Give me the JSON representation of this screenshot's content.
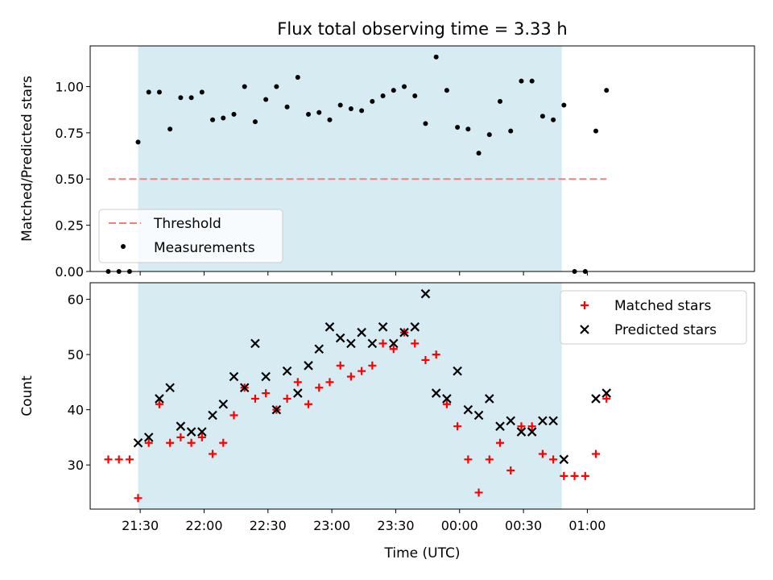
{
  "chart_data": [
    {
      "type": "scatter",
      "title": "Flux total observing time = 3.33 h",
      "xlabel": "",
      "ylabel": "Matched/Predicted stars",
      "ylim": [
        0,
        1.22
      ],
      "yticks": [
        "0.00",
        "0.25",
        "0.50",
        "0.75",
        "1.00"
      ],
      "legend_position": "lower-left",
      "shaded_span": [
        "21:29",
        "00:48"
      ],
      "threshold": {
        "name": "Threshold",
        "value": 0.5,
        "x_range": [
          "21:15",
          "01:09"
        ],
        "color": "#f08080"
      },
      "series": [
        {
          "name": "Measurements",
          "color": "#000000",
          "points": [
            [
              "21:15",
              0.0
            ],
            [
              "21:20",
              0.0
            ],
            [
              "21:25",
              0.0
            ],
            [
              "21:29",
              0.7
            ],
            [
              "21:34",
              0.97
            ],
            [
              "21:39",
              0.97
            ],
            [
              "21:44",
              0.77
            ],
            [
              "21:49",
              0.94
            ],
            [
              "21:54",
              0.94
            ],
            [
              "21:59",
              0.97
            ],
            [
              "22:04",
              0.82
            ],
            [
              "22:09",
              0.83
            ],
            [
              "22:14",
              0.85
            ],
            [
              "22:19",
              1.0
            ],
            [
              "22:24",
              0.81
            ],
            [
              "22:29",
              0.93
            ],
            [
              "22:34",
              1.0
            ],
            [
              "22:39",
              0.89
            ],
            [
              "22:44",
              1.05
            ],
            [
              "22:49",
              0.85
            ],
            [
              "22:54",
              0.86
            ],
            [
              "22:59",
              0.82
            ],
            [
              "23:04",
              0.9
            ],
            [
              "23:09",
              0.88
            ],
            [
              "23:14",
              0.87
            ],
            [
              "23:19",
              0.92
            ],
            [
              "23:24",
              0.95
            ],
            [
              "23:29",
              0.98
            ],
            [
              "23:34",
              1.0
            ],
            [
              "23:39",
              0.95
            ],
            [
              "23:44",
              0.8
            ],
            [
              "23:49",
              1.16
            ],
            [
              "23:54",
              0.98
            ],
            [
              "23:59",
              0.78
            ],
            [
              "00:04",
              0.77
            ],
            [
              "00:09",
              0.64
            ],
            [
              "00:14",
              0.74
            ],
            [
              "00:19",
              0.92
            ],
            [
              "00:24",
              0.76
            ],
            [
              "00:29",
              1.03
            ],
            [
              "00:34",
              1.03
            ],
            [
              "00:39",
              0.84
            ],
            [
              "00:44",
              0.82
            ],
            [
              "00:49",
              0.9
            ],
            [
              "00:54",
              0.0
            ],
            [
              "00:59",
              0.0
            ],
            [
              "01:04",
              0.76
            ],
            [
              "01:09",
              0.98
            ]
          ]
        }
      ]
    },
    {
      "type": "scatter",
      "title": "",
      "xlabel": "Time (UTC)",
      "ylabel": "Count",
      "ylim": [
        22,
        63
      ],
      "yticks": [
        "30",
        "40",
        "50",
        "60"
      ],
      "xticks": [
        "21:30",
        "22:00",
        "22:30",
        "23:00",
        "23:30",
        "00:00",
        "00:30",
        "01:00"
      ],
      "legend_position": "upper-right",
      "shaded_span": [
        "21:29",
        "00:48"
      ],
      "series": [
        {
          "name": "Matched stars",
          "marker": "plus",
          "color": "#ff0000",
          "points": [
            [
              "21:15",
              31
            ],
            [
              "21:20",
              31
            ],
            [
              "21:25",
              31
            ],
            [
              "21:29",
              24
            ],
            [
              "21:34",
              34
            ],
            [
              "21:39",
              41
            ],
            [
              "21:44",
              34
            ],
            [
              "21:49",
              35
            ],
            [
              "21:54",
              34
            ],
            [
              "21:59",
              35
            ],
            [
              "22:04",
              32
            ],
            [
              "22:09",
              34
            ],
            [
              "22:14",
              39
            ],
            [
              "22:19",
              44
            ],
            [
              "22:24",
              42
            ],
            [
              "22:29",
              43
            ],
            [
              "22:34",
              40
            ],
            [
              "22:39",
              42
            ],
            [
              "22:44",
              45
            ],
            [
              "22:49",
              41
            ],
            [
              "22:54",
              44
            ],
            [
              "22:59",
              45
            ],
            [
              "23:04",
              48
            ],
            [
              "23:09",
              46
            ],
            [
              "23:14",
              47
            ],
            [
              "23:19",
              48
            ],
            [
              "23:24",
              52
            ],
            [
              "23:29",
              51
            ],
            [
              "23:34",
              54
            ],
            [
              "23:39",
              52
            ],
            [
              "23:44",
              49
            ],
            [
              "23:49",
              50
            ],
            [
              "23:54",
              41
            ],
            [
              "23:59",
              37
            ],
            [
              "00:04",
              31
            ],
            [
              "00:09",
              25
            ],
            [
              "00:14",
              31
            ],
            [
              "00:19",
              34
            ],
            [
              "00:24",
              29
            ],
            [
              "00:29",
              37
            ],
            [
              "00:34",
              37
            ],
            [
              "00:39",
              32
            ],
            [
              "00:44",
              31
            ],
            [
              "00:49",
              28
            ],
            [
              "00:54",
              28
            ],
            [
              "00:59",
              28
            ],
            [
              "01:04",
              32
            ],
            [
              "01:09",
              42
            ]
          ]
        },
        {
          "name": "Predicted stars",
          "marker": "x",
          "color": "#000000",
          "points": [
            [
              "21:29",
              34
            ],
            [
              "21:34",
              35
            ],
            [
              "21:39",
              42
            ],
            [
              "21:44",
              44
            ],
            [
              "21:49",
              37
            ],
            [
              "21:54",
              36
            ],
            [
              "21:59",
              36
            ],
            [
              "22:04",
              39
            ],
            [
              "22:09",
              41
            ],
            [
              "22:14",
              46
            ],
            [
              "22:19",
              44
            ],
            [
              "22:24",
              52
            ],
            [
              "22:29",
              46
            ],
            [
              "22:34",
              40
            ],
            [
              "22:39",
              47
            ],
            [
              "22:44",
              43
            ],
            [
              "22:49",
              48
            ],
            [
              "22:54",
              51
            ],
            [
              "22:59",
              55
            ],
            [
              "23:04",
              53
            ],
            [
              "23:09",
              52
            ],
            [
              "23:14",
              54
            ],
            [
              "23:19",
              52
            ],
            [
              "23:24",
              55
            ],
            [
              "23:29",
              52
            ],
            [
              "23:34",
              54
            ],
            [
              "23:39",
              55
            ],
            [
              "23:44",
              61
            ],
            [
              "23:49",
              43
            ],
            [
              "23:54",
              42
            ],
            [
              "23:59",
              47
            ],
            [
              "00:04",
              40
            ],
            [
              "00:09",
              39
            ],
            [
              "00:14",
              42
            ],
            [
              "00:19",
              37
            ],
            [
              "00:24",
              38
            ],
            [
              "00:29",
              36
            ],
            [
              "00:34",
              36
            ],
            [
              "00:39",
              38
            ],
            [
              "00:44",
              38
            ],
            [
              "00:49",
              31
            ],
            [
              "01:04",
              42
            ],
            [
              "01:09",
              43
            ]
          ]
        }
      ]
    }
  ]
}
